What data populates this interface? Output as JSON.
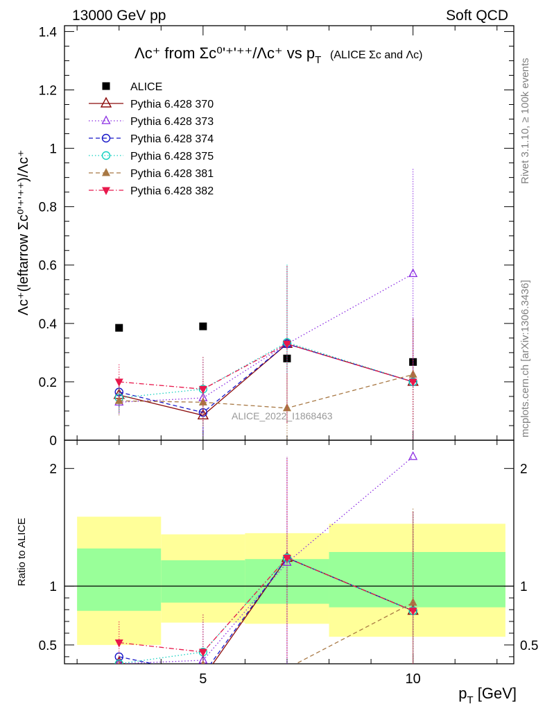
{
  "header": {
    "left": "13000 GeV pp",
    "right": "Soft QCD",
    "title_main": "Λc⁺ from Σc⁰'⁺'⁺⁺/Λc⁺ vs p",
    "title_sub_T": "T",
    "title_paren": "(ALICE Σc and Λc)"
  },
  "side_labels": {
    "rivet": "Rivet 3.1.10, ≥ 100k events",
    "mcplots": "mcplots.cern.ch [arXiv:1306.3436]"
  },
  "watermark": "ALICE_2022_I1868463",
  "colors": {
    "ALICE": "#000000",
    "s370": "#8b0a0a",
    "s373": "#8a2be2",
    "s374": "#1515c8",
    "s375": "#15d0c0",
    "s381": "#a87844",
    "s382": "#e8184c",
    "band_inner": "#99ff99",
    "band_outer": "#ffff99"
  },
  "chart_data": [
    {
      "type": "scatter",
      "panel": "main",
      "ylabel": "Λc⁺(leftarrow Σc⁰'⁺'⁺⁺)/Λc⁺",
      "xlim": [
        1.7,
        12.4
      ],
      "ylim": [
        0,
        1.42
      ],
      "yticks": [
        "0",
        "0.2",
        "0.4",
        "0.6",
        "0.8",
        "1",
        "1.2",
        "1.4"
      ],
      "legend_position": "top-left",
      "series": [
        {
          "name": "ALICE",
          "style": "data",
          "x": [
            3,
            5,
            7,
            10
          ],
          "y": [
            0.385,
            0.39,
            0.28,
            0.268
          ],
          "yerr": [
            0,
            0,
            0,
            0
          ]
        },
        {
          "name": "Pythia 6.428 370",
          "style": "solid",
          "x": [
            3,
            5,
            7,
            10
          ],
          "y": [
            0.155,
            0.085,
            0.33,
            0.2
          ],
          "yerr": [
            0.06,
            0.055,
            0.27,
            0.22
          ]
        },
        {
          "name": "Pythia 6.428 373",
          "style": "dotted",
          "x": [
            3,
            5,
            7,
            10
          ],
          "y": [
            0.13,
            0.145,
            0.33,
            0.57
          ],
          "yerr": [
            0.04,
            0.13,
            0.27,
            0.36
          ]
        },
        {
          "name": "Pythia 6.428 374",
          "style": "dashed",
          "x": [
            3,
            5,
            7,
            10
          ],
          "y": [
            0.165,
            0.095,
            0.33,
            0.2
          ],
          "yerr": [
            0.05,
            0.07,
            0.27,
            0.22
          ]
        },
        {
          "name": "Pythia 6.428 375",
          "style": "dotted",
          "x": [
            3,
            5,
            7,
            10
          ],
          "y": [
            0.145,
            0.175,
            0.335,
            0.2
          ],
          "yerr": [
            0.05,
            0.11,
            0.27,
            0.22
          ]
        },
        {
          "name": "Pythia 6.428 381",
          "style": "dashed",
          "x": [
            3,
            5,
            7,
            10
          ],
          "y": [
            0.135,
            0.13,
            0.11,
            0.225
          ],
          "yerr": [
            0.05,
            0.08,
            0.12,
            0.17
          ]
        },
        {
          "name": "Pythia 6.428 382",
          "style": "dashdot",
          "x": [
            3,
            5,
            7,
            10
          ],
          "y": [
            0.2,
            0.175,
            0.33,
            0.2
          ],
          "yerr": [
            0.06,
            0.11,
            0.27,
            0.22
          ]
        }
      ]
    },
    {
      "type": "line",
      "panel": "ratio",
      "xlabel": "p_T [GeV]",
      "ylabel": "Ratio to ALICE",
      "xlim": [
        1.7,
        12.4
      ],
      "ylim": [
        0.34,
        2.24
      ],
      "xticks": [
        "5",
        "10"
      ],
      "yticks": [
        "0.5",
        "1",
        "2"
      ],
      "bands": [
        {
          "x_lo": 2,
          "x_hi": 4,
          "inner": [
            0.79,
            1.32
          ],
          "outer": [
            0.5,
            1.59
          ]
        },
        {
          "x_lo": 4,
          "x_hi": 6,
          "inner": [
            0.86,
            1.22
          ],
          "outer": [
            0.69,
            1.44
          ]
        },
        {
          "x_lo": 6,
          "x_hi": 8,
          "inner": [
            0.85,
            1.23
          ],
          "outer": [
            0.68,
            1.45
          ]
        },
        {
          "x_lo": 8,
          "x_hi": 12.2,
          "inner": [
            0.82,
            1.29
          ],
          "outer": [
            0.57,
            1.53
          ]
        }
      ],
      "series": [
        {
          "name": "Pythia 6.428 370",
          "x": [
            3,
            5,
            7,
            10
          ],
          "y": [
            0.35,
            0.22,
            1.24,
            0.79
          ],
          "yerr": [
            0,
            0,
            0.85,
            0.85
          ]
        },
        {
          "name": "Pythia 6.428 373",
          "x": [
            3,
            5,
            7,
            10
          ],
          "y": [
            0.34,
            0.37,
            1.2,
            2.1
          ],
          "yerr": [
            0,
            0.33,
            0.9,
            0
          ]
        },
        {
          "name": "Pythia 6.428 374",
          "x": [
            3,
            5,
            7,
            10
          ],
          "y": [
            0.4,
            0.25,
            1.24,
            0.79
          ],
          "yerr": [
            0,
            0,
            0.85,
            0.85
          ]
        },
        {
          "name": "Pythia 6.428 375",
          "x": [
            3,
            5,
            7,
            10
          ],
          "y": [
            0.34,
            0.44,
            1.24,
            0.79
          ],
          "yerr": [
            0,
            0.33,
            0.85,
            0.85
          ]
        },
        {
          "name": "Pythia 6.428 381",
          "x": [
            3,
            5,
            7,
            10
          ],
          "y": [
            0.32,
            0.33,
            0.3,
            0.86
          ],
          "yerr": [
            0,
            0,
            0,
            0.8
          ]
        },
        {
          "name": "Pythia 6.428 382",
          "x": [
            3,
            5,
            7,
            10
          ],
          "y": [
            0.52,
            0.44,
            1.24,
            0.79
          ],
          "yerr": [
            0.18,
            0.33,
            0.85,
            0.85
          ]
        }
      ]
    }
  ]
}
